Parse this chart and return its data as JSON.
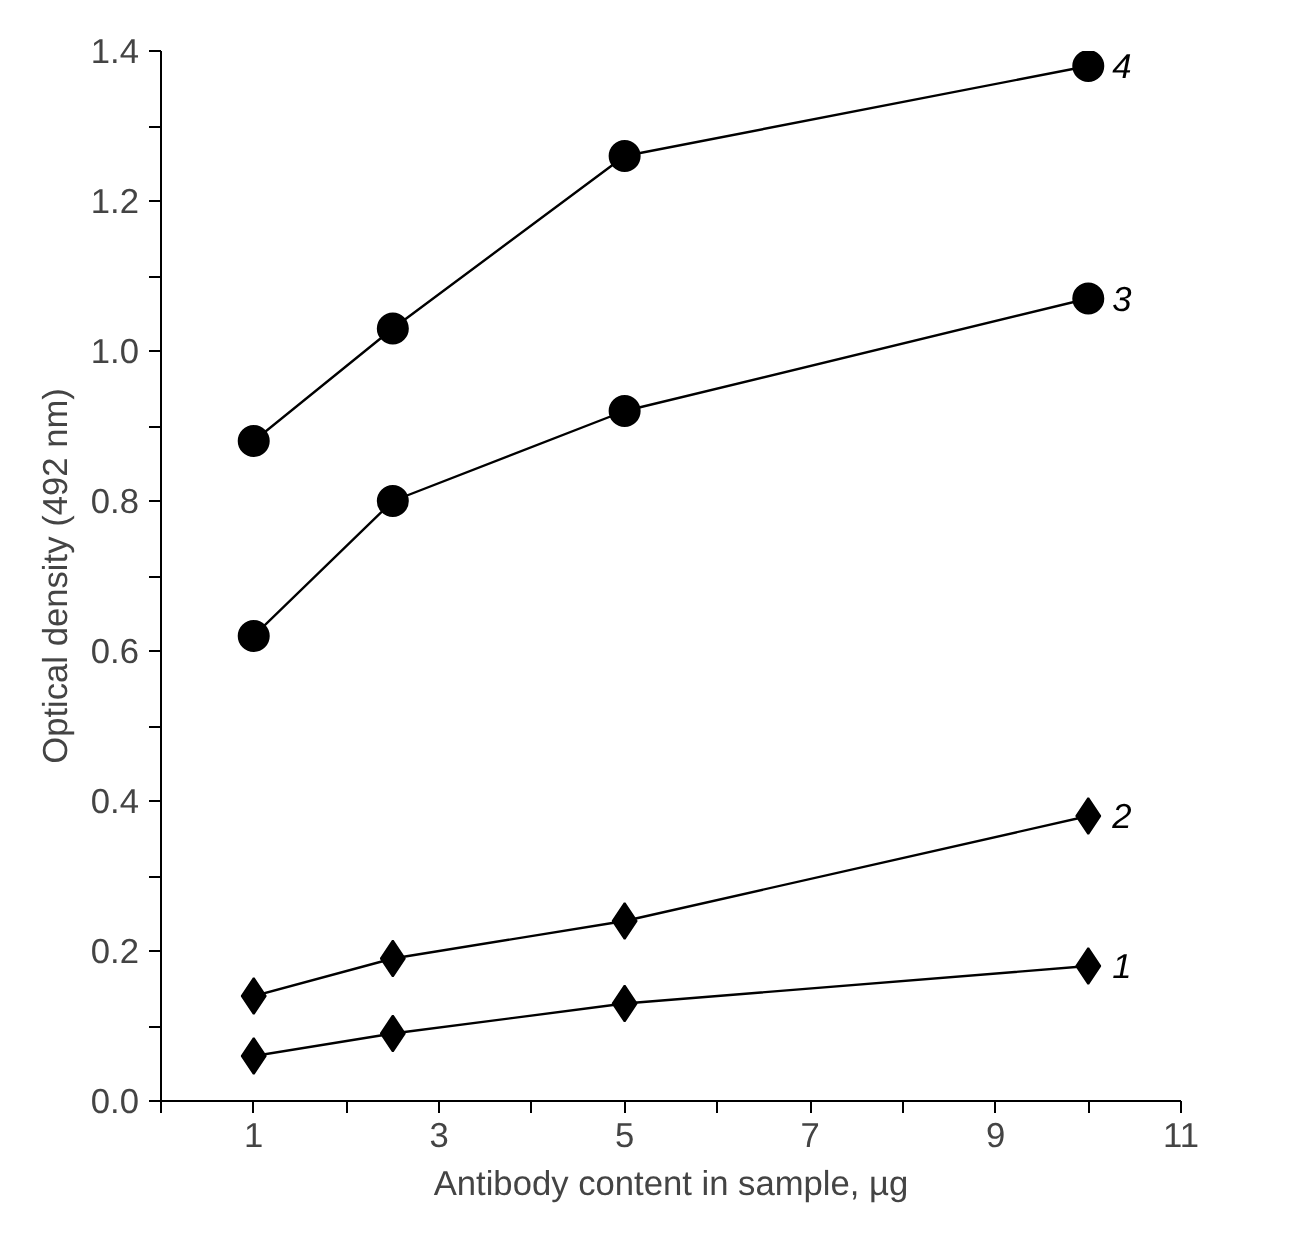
{
  "chart_data": {
    "type": "line",
    "xlabel": "Antibody content in sample, µg",
    "ylabel": "Optical density (492 nm)",
    "x": [
      1,
      2.5,
      5,
      10
    ],
    "series": [
      {
        "name": "1",
        "color": "#000000",
        "marker": "diamond",
        "values": [
          0.06,
          0.09,
          0.13,
          0.18
        ]
      },
      {
        "name": "2",
        "color": "#000000",
        "marker": "diamond",
        "values": [
          0.14,
          0.19,
          0.24,
          0.38
        ]
      },
      {
        "name": "3",
        "color": "#000000",
        "marker": "circle",
        "values": [
          0.62,
          0.8,
          0.92,
          1.07
        ]
      },
      {
        "name": "4",
        "color": "#000000",
        "marker": "circle",
        "values": [
          0.88,
          1.03,
          1.26,
          1.38
        ]
      }
    ],
    "xlim": [
      0,
      11
    ],
    "ylim": [
      0,
      1.4
    ],
    "xticks": [
      {
        "value": 0,
        "label": null
      },
      1,
      {
        "value": 2,
        "label": null
      },
      3,
      {
        "value": 4,
        "label": null
      },
      5,
      {
        "value": 6,
        "label": null
      },
      7,
      {
        "value": 8,
        "label": null
      },
      9,
      {
        "value": 10,
        "label": null
      },
      11
    ],
    "yticks": [
      {
        "value": 0,
        "label": "0.0"
      },
      {
        "value": 0.1,
        "label": null
      },
      0.2,
      {
        "value": 0.3,
        "label": null
      },
      0.4,
      {
        "value": 0.5,
        "label": null
      },
      0.6,
      {
        "value": 0.7,
        "label": null
      },
      0.8,
      {
        "value": 0.9,
        "label": null
      },
      {
        "value": 1.0,
        "label": "1.0"
      },
      {
        "value": 1.1,
        "label": null
      },
      1.2,
      {
        "value": 1.3,
        "label": null
      },
      1.4
    ],
    "grid": false,
    "legend": false,
    "line_style": "solid"
  }
}
